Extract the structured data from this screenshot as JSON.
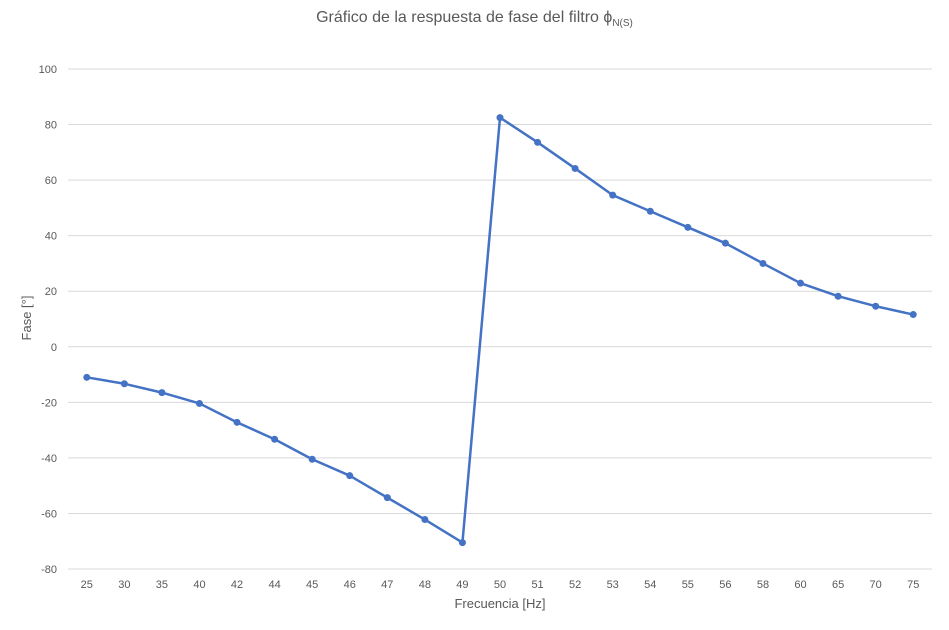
{
  "chart_data": {
    "type": "line",
    "title": "Gráfico de la respuesta de fase del filtro ϕ",
    "title_subscript": "N(S)",
    "xlabel": "Frecuencia [Hz]",
    "ylabel": "Fase [°]",
    "categories": [
      "25",
      "30",
      "35",
      "40",
      "42",
      "44",
      "45",
      "46",
      "47",
      "48",
      "49",
      "50",
      "51",
      "52",
      "53",
      "54",
      "55",
      "56",
      "58",
      "60",
      "65",
      "70",
      "75"
    ],
    "series": [
      {
        "values": [
          -11,
          -13.3,
          -16.5,
          -20.4,
          -27.2,
          -33.3,
          -40.5,
          -46.4,
          -54.3,
          -62.2,
          -70.5,
          82.5,
          73.6,
          64.2,
          54.6,
          48.8,
          43,
          37.3,
          30,
          22.9,
          18.2,
          14.6,
          11.6
        ]
      }
    ],
    "ylim": [
      -80,
      100
    ],
    "yticks": [
      -80,
      -60,
      -40,
      -20,
      0,
      20,
      40,
      60,
      80,
      100
    ],
    "grid": true,
    "legend": "none",
    "colors": {
      "line": "#4472c4",
      "grid": "#d9d9d9",
      "text": "#595959"
    }
  }
}
